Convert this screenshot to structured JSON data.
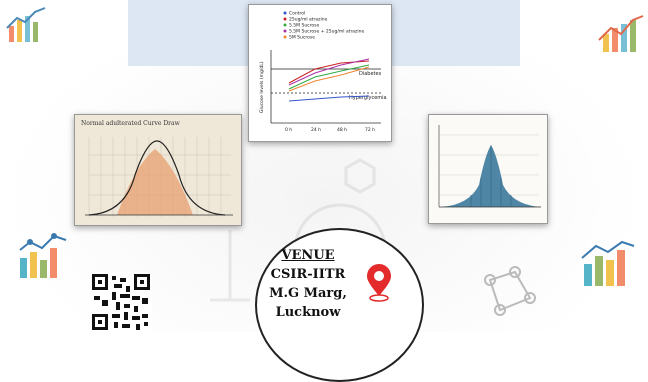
{
  "venue": {
    "heading": "VENUE",
    "line1": "CSIR-IITR",
    "line2": "M.G Marg,",
    "line3": "Lucknow"
  },
  "glucose_chart": {
    "legend": [
      "Control",
      "25ug/ml atrazine",
      "5.5M Sucrose",
      "5.5M Sucrose + 25ug/ml atrazine",
      "5M Sucrose"
    ],
    "ylabel": "Glucose levels (mg/dL)",
    "ticks_x": [
      "0 h",
      "24 h",
      "48 h",
      "72 h"
    ],
    "ref_lines": [
      "Diabetes",
      "Hyperglycemia"
    ]
  },
  "curve_chart_title": "Normal adulterated Curve Draw",
  "colors": {
    "pin": "#e32b2b",
    "chart_blue": "#4f86a6",
    "curve_orange": "#e8a070",
    "card_bg": "#efe8d8"
  }
}
